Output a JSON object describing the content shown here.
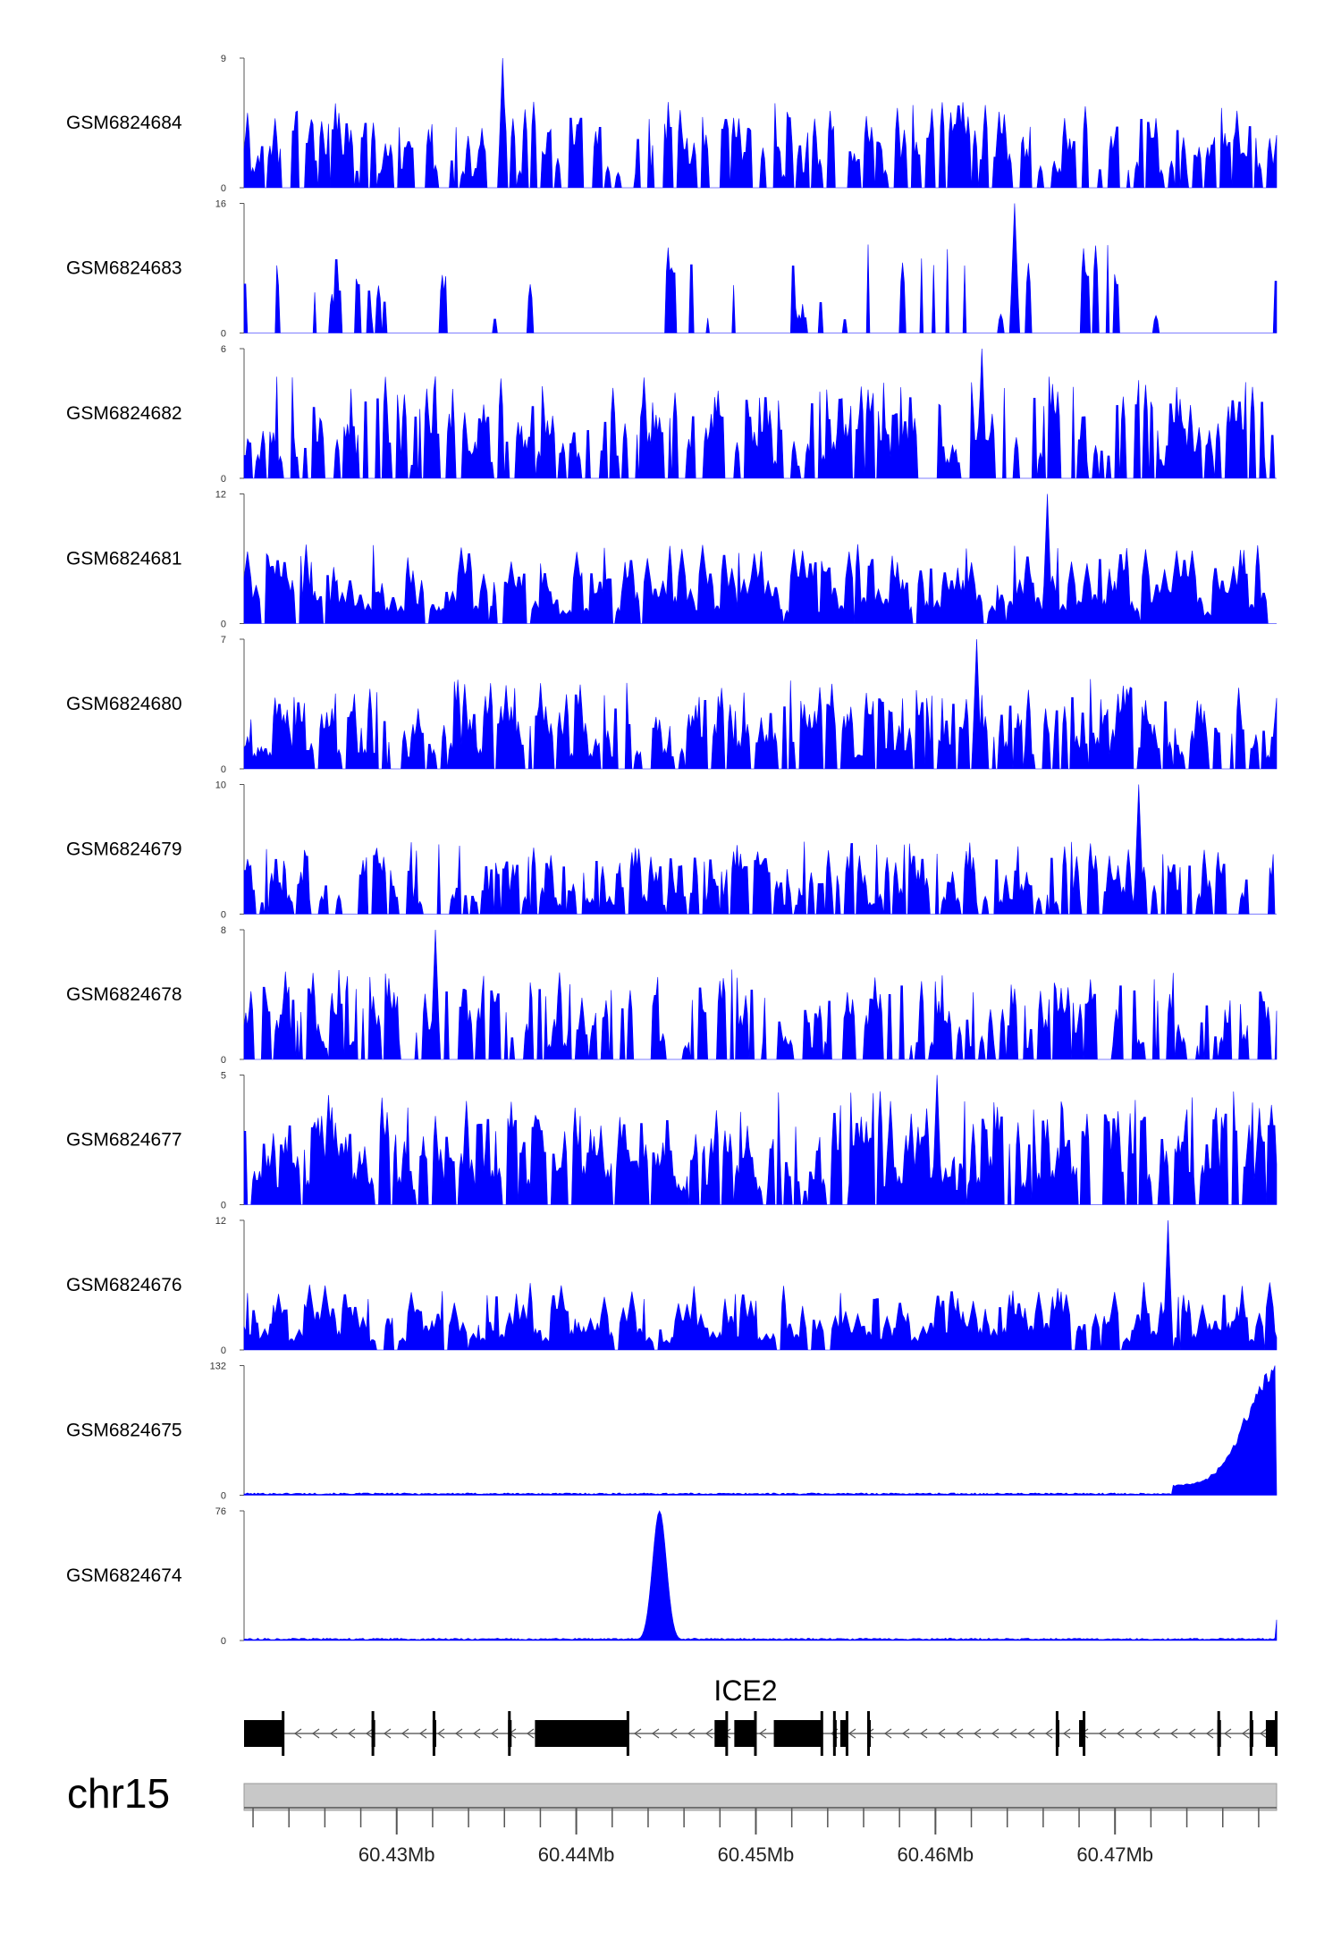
{
  "chart_data": {
    "type": "area",
    "colors": {
      "signal": "#0000ff",
      "gene": "#000000",
      "ideogram": "#c8c8c8"
    },
    "tracks": [
      {
        "name": "GSM6824684",
        "ymax": "9",
        "ymin": "0",
        "ylim": [
          0,
          9
        ],
        "max": 9,
        "peak_at": 60.4359,
        "peak_value": 9,
        "seed": 11,
        "style": "spiky",
        "density": 0.62,
        "typical": 0.38
      },
      {
        "name": "GSM6824683",
        "ymax": "16",
        "ymin": "0",
        "ylim": [
          0,
          16
        ],
        "max": 16,
        "peak_at": 60.4644,
        "peak_value": 16,
        "seed": 23,
        "style": "sparse",
        "density": 0.28,
        "typical": 0.42
      },
      {
        "name": "GSM6824682",
        "ymax": "6",
        "ymin": "0",
        "ylim": [
          0,
          6
        ],
        "max": 6,
        "peak_at": 60.4626,
        "peak_value": 6,
        "seed": 37,
        "style": "spiky",
        "density": 0.7,
        "typical": 0.45
      },
      {
        "name": "GSM6824681",
        "ymax": "12",
        "ymin": "0",
        "ylim": [
          0,
          12
        ],
        "max": 12,
        "peak_at": 60.4662,
        "peak_value": 12,
        "seed": 41,
        "style": "dense",
        "density": 0.9,
        "typical": 0.35
      },
      {
        "name": "GSM6824680",
        "ymax": "7",
        "ymin": "0",
        "ylim": [
          0,
          7
        ],
        "max": 7,
        "peak_at": 60.4623,
        "peak_value": 7,
        "seed": 53,
        "style": "spiky",
        "density": 0.75,
        "typical": 0.4
      },
      {
        "name": "GSM6824679",
        "ymax": "10",
        "ymin": "0",
        "ylim": [
          0,
          10
        ],
        "max": 10,
        "peak_at": 60.4713,
        "peak_value": 10,
        "seed": 67,
        "style": "spiky",
        "density": 0.72,
        "typical": 0.32
      },
      {
        "name": "GSM6824678",
        "ymax": "8",
        "ymin": "0",
        "ylim": [
          0,
          8
        ],
        "max": 8,
        "peak_at": 60.4322,
        "peak_value": 8,
        "seed": 71,
        "style": "spiky",
        "density": 0.6,
        "typical": 0.4
      },
      {
        "name": "GSM6824677",
        "ymax": "5",
        "ymin": "0",
        "ylim": [
          0,
          5
        ],
        "max": 5,
        "peak_at": 60.4601,
        "peak_value": 5,
        "seed": 89,
        "style": "spiky",
        "density": 0.85,
        "typical": 0.5
      },
      {
        "name": "GSM6824676",
        "ymax": "12",
        "ymin": "0",
        "ylim": [
          0,
          12
        ],
        "max": 12,
        "peak_at": 60.473,
        "peak_value": 12,
        "seed": 97,
        "style": "dense",
        "density": 0.92,
        "typical": 0.3
      },
      {
        "name": "GSM6824675",
        "ymax": "132",
        "ymin": "0",
        "ylim": [
          0,
          132
        ],
        "max": 132,
        "peak_at": 60.4789,
        "peak_value": 132,
        "seed": 101,
        "style": "flat",
        "density": 1.0,
        "typical": 0.01
      },
      {
        "name": "GSM6824674",
        "ymax": "76",
        "ymin": "0",
        "ylim": [
          0,
          76
        ],
        "max": 76,
        "peak_at": 60.4446,
        "peak_value": 76,
        "seed": 113,
        "style": "flat",
        "density": 1.0,
        "typical": 0.01
      }
    ],
    "gene": {
      "label": "ICE2",
      "strand": "-",
      "start": 60.4215,
      "end": 60.479,
      "exons": [
        [
          60.4215,
          60.4237
        ],
        [
          60.4286,
          60.4288
        ],
        [
          60.432,
          60.4322
        ],
        [
          60.4362,
          60.4364
        ],
        [
          60.4377,
          60.4429
        ],
        [
          60.4477,
          60.4484
        ],
        [
          60.4488,
          60.45
        ],
        [
          60.451,
          60.4537
        ],
        [
          60.4543,
          60.4545
        ],
        [
          60.4547,
          60.4551
        ],
        [
          60.4562,
          60.4564
        ],
        [
          60.4667,
          60.4669
        ],
        [
          60.468,
          60.4683
        ],
        [
          60.4757,
          60.4759
        ],
        [
          60.4775,
          60.4777
        ],
        [
          60.4784,
          60.479
        ]
      ],
      "utr": [
        [
          60.4784,
          60.4786
        ]
      ]
    },
    "chromosome": "chr15",
    "xlim": [
      60.4215,
      60.479
    ],
    "xticks": [
      60.43,
      60.44,
      60.45,
      60.46,
      60.47
    ],
    "xtick_labels": [
      "60.43Mb",
      "60.44Mb",
      "60.45Mb",
      "60.46Mb",
      "60.47Mb"
    ],
    "minor_tick_step": 0.002
  }
}
